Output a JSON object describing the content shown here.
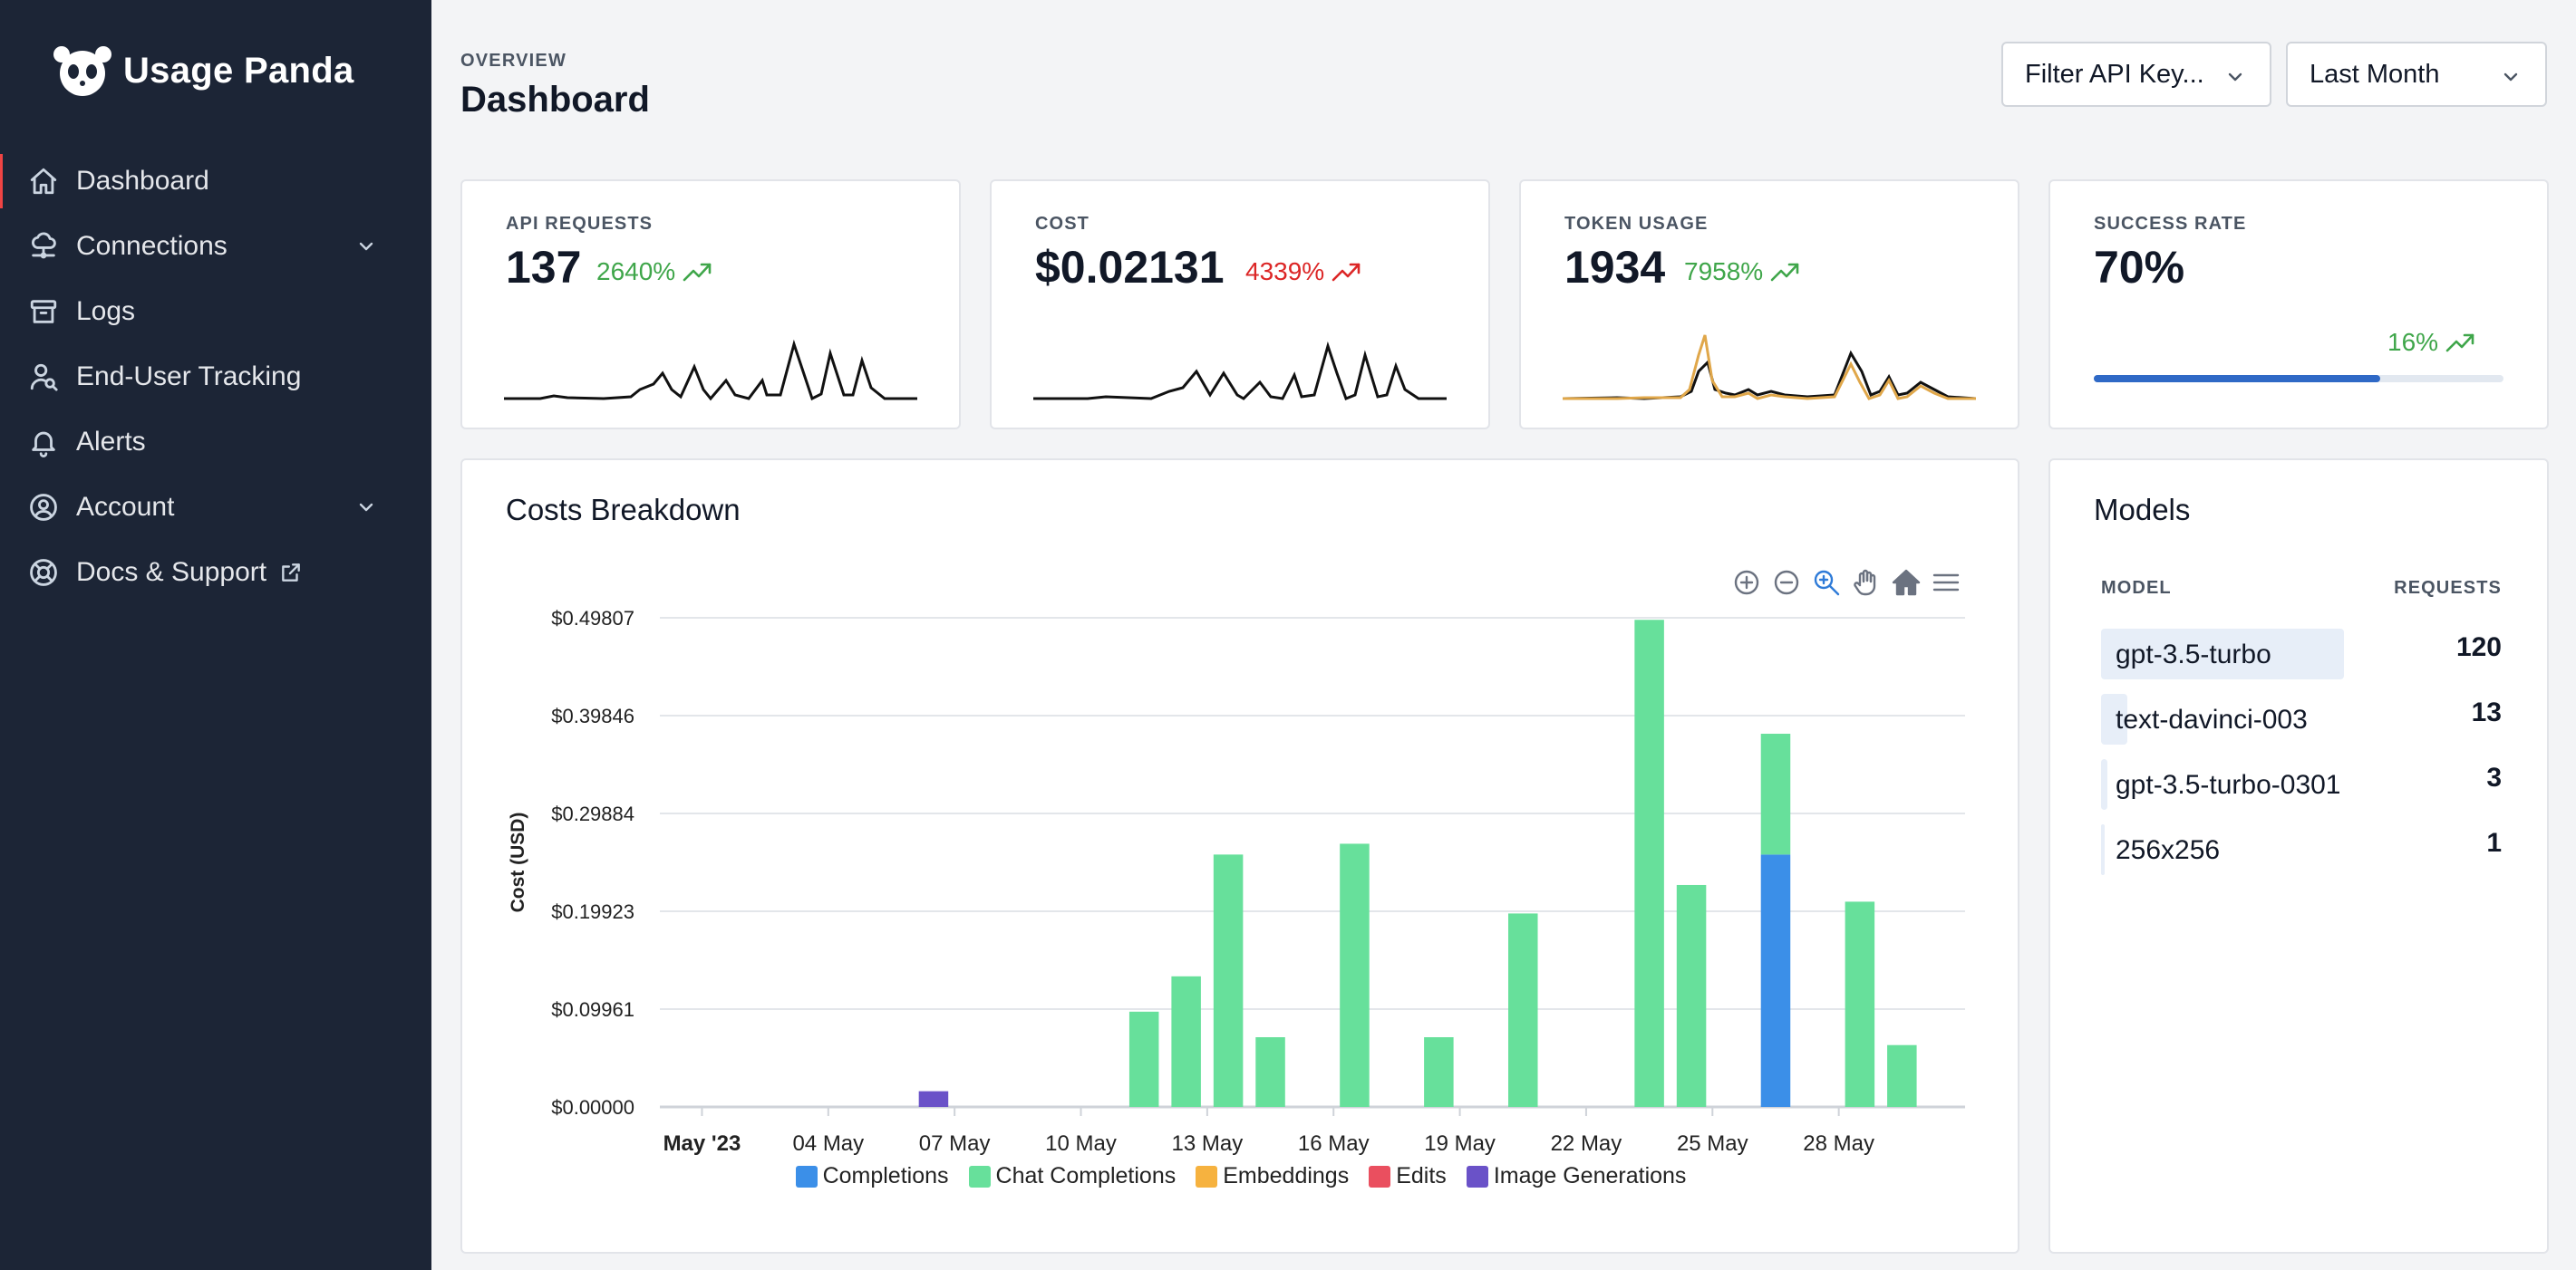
{
  "brand": {
    "name": "Usage Panda"
  },
  "sidebar": {
    "items": [
      {
        "label": "Dashboard",
        "icon": "home-icon",
        "active": true,
        "expandable": false
      },
      {
        "label": "Connections",
        "icon": "connections-icon",
        "expandable": true
      },
      {
        "label": "Logs",
        "icon": "archive-icon",
        "expandable": false
      },
      {
        "label": "End-User Tracking",
        "icon": "user-search-icon",
        "expandable": false
      },
      {
        "label": "Alerts",
        "icon": "bell-icon",
        "expandable": false
      },
      {
        "label": "Account",
        "icon": "user-circle-icon",
        "expandable": true
      },
      {
        "label": "Docs & Support",
        "icon": "lifebuoy-icon",
        "external": true
      }
    ]
  },
  "header": {
    "eyebrow": "OVERVIEW",
    "title": "Dashboard",
    "filter_api_key": "Filter API Key...",
    "date_range": "Last Month"
  },
  "stats": [
    {
      "label": "API REQUESTS",
      "value": "137",
      "change": "2640%",
      "trend": "up",
      "trend_color": "#3fa64a"
    },
    {
      "label": "COST",
      "value": "$0.02131",
      "change": "4339%",
      "trend": "up",
      "trend_color": "#dc2626"
    },
    {
      "label": "TOKEN USAGE",
      "value": "1934",
      "change": "7958%",
      "trend": "up",
      "trend_color": "#3fa64a"
    },
    {
      "label": "SUCCESS RATE",
      "value": "70%",
      "change": "16%",
      "trend": "up",
      "trend_color": "#3fa64a",
      "progress": 0.7
    }
  ],
  "costs_breakdown": {
    "title": "Costs Breakdown",
    "chart_data": {
      "type": "bar",
      "stacked": true,
      "ylabel": "Cost (USD)",
      "y_ticks": [
        "$0.00000",
        "$0.09961",
        "$0.19923",
        "$0.29884",
        "$0.39846",
        "$0.49807"
      ],
      "ylim": [
        0,
        0.49807
      ],
      "x_ticks": [
        "May '23",
        "04 May",
        "07 May",
        "10 May",
        "13 May",
        "16 May",
        "19 May",
        "22 May",
        "25 May",
        "28 May"
      ],
      "x_dates": [
        "2023-05-01",
        "2023-05-04",
        "2023-05-07",
        "2023-05-10",
        "2023-05-13",
        "2023-05-16",
        "2023-05-19",
        "2023-05-22",
        "2023-05-25",
        "2023-05-28"
      ],
      "x_range": [
        "2023-04-30",
        "2023-05-31"
      ],
      "series": [
        {
          "name": "Completions",
          "color": "#3b8fe8",
          "points": [
            {
              "date": "2023-05-26",
              "value": 0.257
            }
          ]
        },
        {
          "name": "Chat Completions",
          "color": "#67e09b",
          "points": [
            {
              "date": "2023-05-11",
              "value": 0.097
            },
            {
              "date": "2023-05-12",
              "value": 0.133
            },
            {
              "date": "2023-05-13",
              "value": 0.257
            },
            {
              "date": "2023-05-14",
              "value": 0.071
            },
            {
              "date": "2023-05-16",
              "value": 0.268
            },
            {
              "date": "2023-05-18",
              "value": 0.071
            },
            {
              "date": "2023-05-20",
              "value": 0.197
            },
            {
              "date": "2023-05-23",
              "value": 0.496
            },
            {
              "date": "2023-05-24",
              "value": 0.226
            },
            {
              "date": "2023-05-26",
              "value": 0.123
            },
            {
              "date": "2023-05-28",
              "value": 0.209
            },
            {
              "date": "2023-05-29",
              "value": 0.063
            }
          ]
        },
        {
          "name": "Embeddings",
          "color": "#f6b23f",
          "points": []
        },
        {
          "name": "Edits",
          "color": "#ea4f5f",
          "points": []
        },
        {
          "name": "Image Generations",
          "color": "#6a52c8",
          "points": [
            {
              "date": "2023-05-06",
              "value": 0.016
            }
          ]
        }
      ],
      "legend_position": "bottom",
      "grid": true
    }
  },
  "models": {
    "title": "Models",
    "col_model": "MODEL",
    "col_requests": "REQUESTS",
    "rows": [
      {
        "name": "gpt-3.5-turbo",
        "requests": 120
      },
      {
        "name": "text-davinci-003",
        "requests": 13
      },
      {
        "name": "gpt-3.5-turbo-0301",
        "requests": 3
      },
      {
        "name": "256x256",
        "requests": 1
      }
    ]
  }
}
